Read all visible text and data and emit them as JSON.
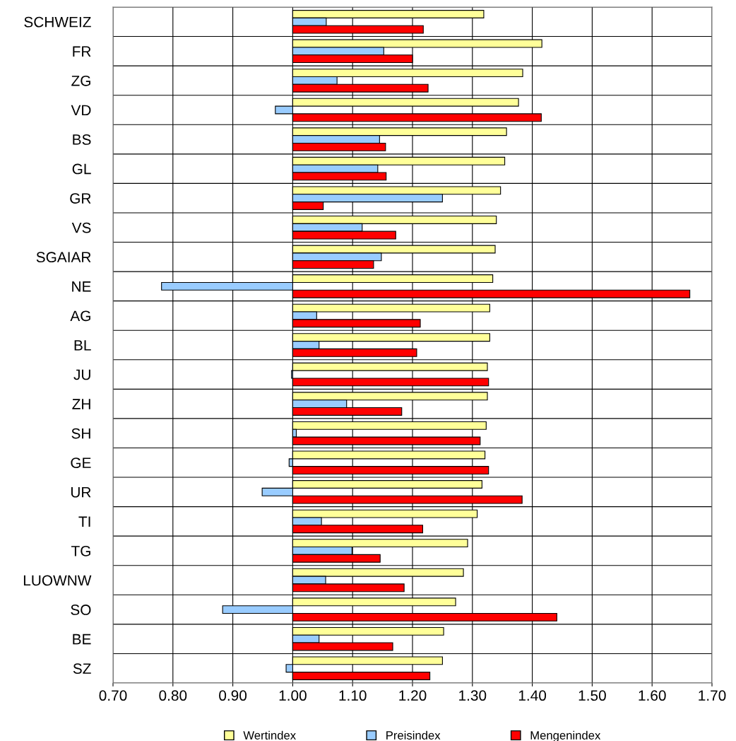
{
  "chart_data": {
    "type": "bar",
    "orientation": "horizontal",
    "categories": [
      "SCHWEIZ",
      "FR",
      "ZG",
      "VD",
      "BS",
      "GL",
      "GR",
      "VS",
      "SGAIAR",
      "NE",
      "AG",
      "BL",
      "JU",
      "ZH",
      "SH",
      "GE",
      "UR",
      "TI",
      "TG",
      "LUOWNW",
      "SO",
      "BE",
      "SZ"
    ],
    "series": [
      {
        "name": "Wertindex",
        "color": "#ffff99",
        "base": [
          1,
          1,
          1,
          1,
          1,
          1,
          1,
          1,
          1,
          1,
          1,
          1,
          1,
          1,
          1,
          1,
          1,
          1,
          1,
          1,
          1,
          1,
          1
        ],
        "values": [
          0.319,
          0.416,
          0.384,
          0.377,
          0.357,
          0.354,
          0.347,
          0.34,
          0.338,
          0.334,
          0.329,
          0.329,
          0.325,
          0.325,
          0.323,
          0.321,
          0.316,
          0.308,
          0.292,
          0.285,
          0.272,
          0.252,
          0.25
        ]
      },
      {
        "name": "Preisindex",
        "color": "#99ccff",
        "base": [
          1,
          1,
          1,
          1,
          1,
          1,
          1,
          1,
          1,
          1,
          1,
          1,
          1,
          1,
          1,
          1,
          1,
          1,
          1,
          1,
          1,
          1,
          1
        ],
        "values": [
          0.056,
          0.152,
          0.074,
          -0.029,
          0.145,
          0.142,
          0.25,
          0.116,
          0.148,
          -0.219,
          0.04,
          0.044,
          -0.002,
          0.09,
          0.006,
          -0.006,
          -0.051,
          0.048,
          0.099,
          0.055,
          -0.117,
          0.044,
          -0.011
        ]
      },
      {
        "name": "Mengenindex",
        "color": "#ff0000",
        "base": [
          1,
          1,
          1,
          1,
          1,
          1,
          1,
          1,
          1,
          1,
          1,
          1,
          1,
          1,
          1,
          1,
          1,
          1,
          1,
          1,
          1,
          1,
          1
        ],
        "values": [
          0.218,
          0.2,
          0.226,
          0.415,
          0.155,
          0.156,
          0.051,
          0.172,
          0.135,
          0.663,
          0.213,
          0.207,
          0.327,
          0.182,
          0.313,
          0.327,
          0.383,
          0.217,
          0.146,
          0.186,
          0.441,
          0.167,
          0.229
        ]
      }
    ],
    "xlim": [
      0.7,
      1.7
    ],
    "xticks": [
      {
        "value": 0.7,
        "label": "0.70"
      },
      {
        "value": 0.8,
        "label": "0.80"
      },
      {
        "value": 0.9,
        "label": "0.90"
      },
      {
        "value": 1.0,
        "label": "1.00"
      },
      {
        "value": 1.1,
        "label": "1.10"
      },
      {
        "value": 1.2,
        "label": "1.20"
      },
      {
        "value": 1.3,
        "label": "1.30"
      },
      {
        "value": 1.4,
        "label": "1.40"
      },
      {
        "value": 1.5,
        "label": "1.50"
      },
      {
        "value": 1.6,
        "label": "1.60"
      },
      {
        "value": 1.7,
        "label": "1.70"
      }
    ],
    "grid": true,
    "legend": "bottom"
  }
}
